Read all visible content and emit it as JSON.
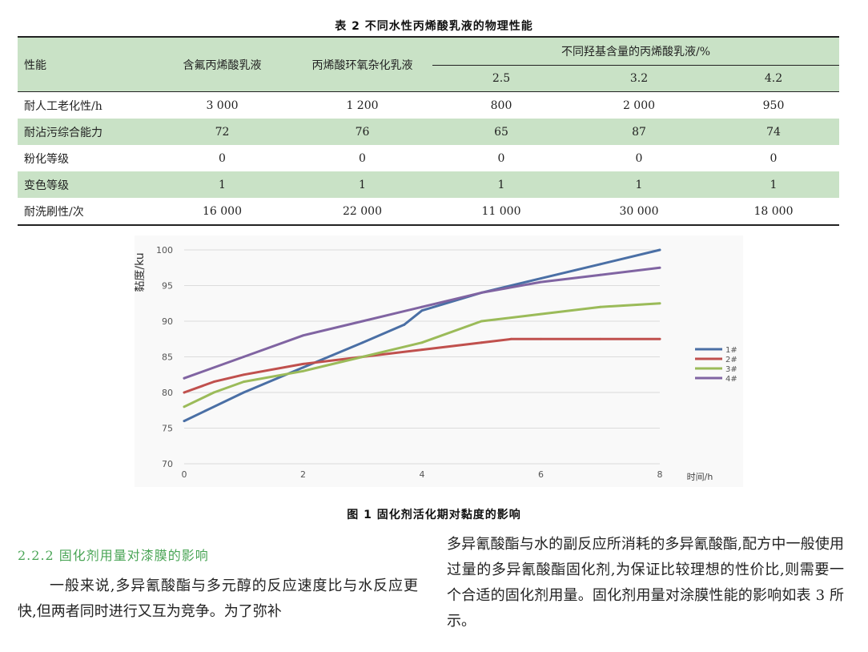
{
  "table": {
    "caption": "表 2  不同水性丙烯酸乳液的物理性能",
    "header": {
      "property": "性能",
      "fluoro": "含氟丙烯酸乳液",
      "epoxy": "丙烯酸环氧杂化乳液",
      "group": "不同羟基含量的丙烯酸乳液/%",
      "sub": [
        "2.5",
        "3.2",
        "4.2"
      ]
    },
    "rows": [
      {
        "label": "耐人工老化性/h",
        "cells": [
          "3 000",
          "1 200",
          "800",
          "2 000",
          "950"
        ]
      },
      {
        "label": "耐沾污综合能力",
        "cells": [
          "72",
          "76",
          "65",
          "87",
          "74"
        ]
      },
      {
        "label": "粉化等级",
        "cells": [
          "0",
          "0",
          "0",
          "0",
          "0"
        ]
      },
      {
        "label": "变色等级",
        "cells": [
          "1",
          "1",
          "1",
          "1",
          "1"
        ]
      },
      {
        "label": "耐洗刷性/次",
        "cells": [
          "16 000",
          "22 000",
          "11 000",
          "30 000",
          "18 000"
        ]
      }
    ]
  },
  "figure": {
    "caption": "图 1  固化剂活化期对黏度的影响"
  },
  "chart_data": {
    "type": "line",
    "ylabel": "黏度/ku",
    "xlabel": "时间/h",
    "ylim": [
      70,
      100
    ],
    "xlim": [
      0,
      8
    ],
    "y_ticks": [
      "70",
      "75",
      "80",
      "85",
      "90",
      "95",
      "100"
    ],
    "x_ticks": [
      "0",
      "2",
      "4",
      "6",
      "8"
    ],
    "grid": true,
    "legend_position": "right",
    "series": [
      {
        "name": "1#",
        "color": "#4a6fa5",
        "x": [
          0,
          1,
          2,
          3,
          3.7,
          4,
          5,
          6,
          7,
          8
        ],
        "y": [
          76,
          80,
          83.5,
          87,
          89.5,
          91.5,
          94,
          96,
          98,
          100
        ]
      },
      {
        "name": "2#",
        "color": "#c0504d",
        "x": [
          0,
          0.5,
          1,
          2,
          3,
          4,
          5,
          5.5,
          6,
          7,
          8
        ],
        "y": [
          80,
          81.5,
          82.5,
          84,
          85,
          86,
          87,
          87.5,
          87.5,
          87.5,
          87.5
        ]
      },
      {
        "name": "3#",
        "color": "#9bbb59",
        "x": [
          0,
          0.5,
          1,
          2,
          3,
          4,
          5,
          6,
          7,
          8
        ],
        "y": [
          78,
          80,
          81.5,
          83,
          85,
          87,
          90,
          91,
          92,
          92.5
        ]
      },
      {
        "name": "4#",
        "color": "#8064a2",
        "x": [
          0,
          1,
          2,
          3,
          4,
          5,
          6,
          7,
          8
        ],
        "y": [
          82,
          85,
          88,
          90,
          92,
          94,
          95.5,
          96.5,
          97.5
        ]
      }
    ]
  },
  "section": {
    "heading": "2.2.2 固化剂用量对漆膜的影响",
    "para_left": "一般来说,多异氰酸酯与多元醇的反应速度比与水反应更快,但两者同时进行又互为竞争。为了弥补",
    "para_right": "多异氰酸酯与水的副反应所消耗的多异氰酸酯,配方中一般使用过量的多异氰酸酯固化剂,为保证比较理想的性价比,则需要一个合适的固化剂用量。固化剂用量对涂膜性能的影响如表 3 所示。"
  }
}
